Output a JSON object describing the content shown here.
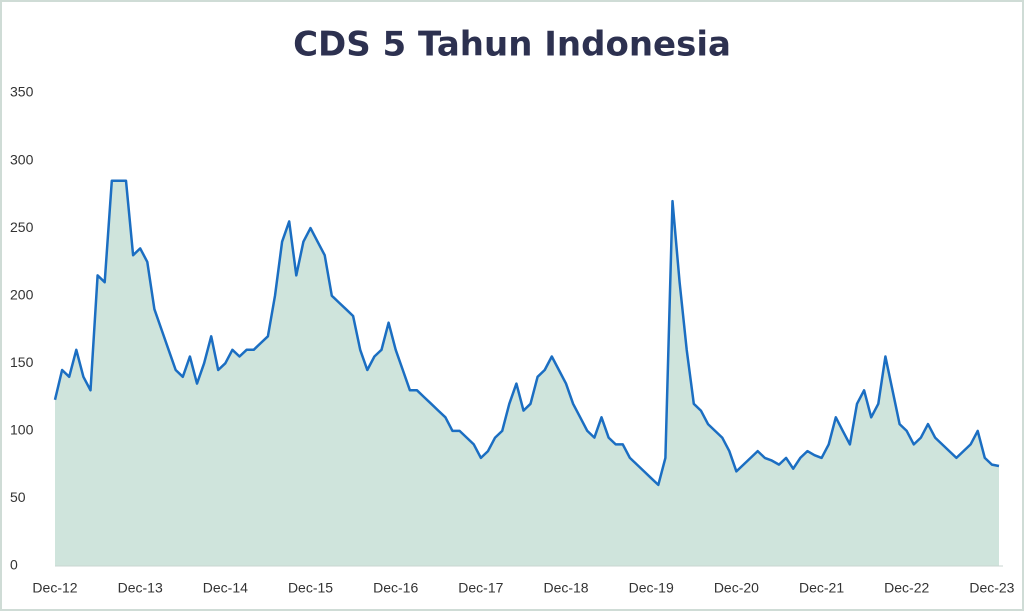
{
  "chart_data": {
    "type": "area",
    "title": "CDS 5 Tahun Indonesia",
    "x": [
      "Dec-12",
      "Jan-13",
      "Feb-13",
      "Mar-13",
      "Apr-13",
      "May-13",
      "Jun-13",
      "Jul-13",
      "Aug-13",
      "Sep-13",
      "Oct-13",
      "Nov-13",
      "Dec-13",
      "Jan-14",
      "Feb-14",
      "Mar-14",
      "Apr-14",
      "May-14",
      "Jun-14",
      "Jul-14",
      "Aug-14",
      "Sep-14",
      "Oct-14",
      "Nov-14",
      "Dec-14",
      "Jan-15",
      "Feb-15",
      "Mar-15",
      "Apr-15",
      "May-15",
      "Jun-15",
      "Jul-15",
      "Aug-15",
      "Sep-15",
      "Oct-15",
      "Nov-15",
      "Dec-15",
      "Jan-16",
      "Feb-16",
      "Mar-16",
      "Apr-16",
      "May-16",
      "Jun-16",
      "Jul-16",
      "Aug-16",
      "Sep-16",
      "Oct-16",
      "Nov-16",
      "Dec-16",
      "Jan-17",
      "Feb-17",
      "Mar-17",
      "Apr-17",
      "May-17",
      "Jun-17",
      "Jul-17",
      "Aug-17",
      "Sep-17",
      "Oct-17",
      "Nov-17",
      "Dec-17",
      "Jan-18",
      "Feb-18",
      "Mar-18",
      "Apr-18",
      "May-18",
      "Jun-18",
      "Jul-18",
      "Aug-18",
      "Sep-18",
      "Oct-18",
      "Nov-18",
      "Dec-18",
      "Jan-19",
      "Feb-19",
      "Mar-19",
      "Apr-19",
      "May-19",
      "Jun-19",
      "Jul-19",
      "Aug-19",
      "Sep-19",
      "Oct-19",
      "Nov-19",
      "Dec-19",
      "Jan-20",
      "Feb-20",
      "Mar-20",
      "Apr-20",
      "May-20",
      "Jun-20",
      "Jul-20",
      "Aug-20",
      "Sep-20",
      "Oct-20",
      "Nov-20",
      "Dec-20",
      "Jan-21",
      "Feb-21",
      "Mar-21",
      "Apr-21",
      "May-21",
      "Jun-21",
      "Jul-21",
      "Aug-21",
      "Sep-21",
      "Oct-21",
      "Nov-21",
      "Dec-21",
      "Jan-22",
      "Feb-22",
      "Mar-22",
      "Apr-22",
      "May-22",
      "Jun-22",
      "Jul-22",
      "Aug-22",
      "Sep-22",
      "Oct-22",
      "Nov-22",
      "Dec-22",
      "Jan-23",
      "Feb-23",
      "Mar-23",
      "Apr-23",
      "May-23",
      "Jun-23",
      "Jul-23",
      "Aug-23",
      "Sep-23",
      "Oct-23",
      "Nov-23",
      "Dec-23",
      "Jan-24"
    ],
    "values": [
      123,
      145,
      140,
      160,
      140,
      130,
      215,
      210,
      285,
      285,
      285,
      230,
      235,
      225,
      190,
      175,
      160,
      145,
      140,
      155,
      135,
      150,
      170,
      145,
      150,
      160,
      155,
      160,
      160,
      165,
      170,
      200,
      240,
      255,
      215,
      240,
      250,
      240,
      230,
      200,
      195,
      190,
      185,
      160,
      145,
      155,
      160,
      180,
      160,
      145,
      130,
      130,
      125,
      120,
      115,
      110,
      100,
      100,
      95,
      90,
      80,
      85,
      95,
      100,
      120,
      135,
      115,
      120,
      140,
      145,
      155,
      145,
      135,
      120,
      110,
      100,
      95,
      110,
      95,
      90,
      90,
      80,
      75,
      70,
      65,
      60,
      80,
      270,
      210,
      160,
      120,
      115,
      105,
      100,
      95,
      85,
      70,
      75,
      80,
      85,
      80,
      78,
      75,
      80,
      72,
      80,
      85,
      82,
      80,
      90,
      110,
      100,
      90,
      120,
      130,
      110,
      120,
      155,
      130,
      105,
      100,
      90,
      95,
      105,
      95,
      90,
      85,
      80,
      85,
      90,
      100,
      80,
      75,
      74
    ],
    "color": "#1b6ec2",
    "fill": "#cfe4dc",
    "ylim": [
      0,
      350
    ],
    "yticks": [
      0,
      50,
      100,
      150,
      200,
      250,
      300,
      350
    ]
  }
}
